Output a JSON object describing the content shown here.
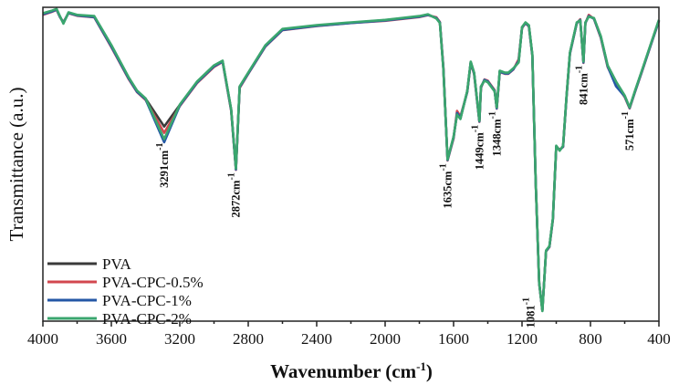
{
  "chart_data": {
    "type": "line",
    "title": "",
    "xlabel": "Wavenumber (cm",
    "xlabel_sup": "-1",
    "xlabel_end": ")",
    "ylabel": "Transmittance (a.u.)",
    "xlim": [
      4000,
      400
    ],
    "ylim": [
      0,
      100
    ],
    "x_ticks": [
      4000,
      3600,
      3200,
      2800,
      2400,
      2000,
      1600,
      1200,
      800,
      400
    ],
    "grid": false,
    "legend_position": "bottom-left",
    "x": [
      4000,
      3950,
      3920,
      3900,
      3880,
      3850,
      3800,
      3700,
      3600,
      3500,
      3450,
      3400,
      3291,
      3200,
      3100,
      3000,
      2950,
      2900,
      2872,
      2850,
      2800,
      2700,
      2600,
      2400,
      2200,
      2000,
      1800,
      1750,
      1700,
      1680,
      1660,
      1635,
      1600,
      1580,
      1560,
      1520,
      1500,
      1480,
      1449,
      1440,
      1420,
      1400,
      1360,
      1348,
      1330,
      1300,
      1280,
      1250,
      1220,
      1200,
      1180,
      1160,
      1140,
      1120,
      1100,
      1081,
      1060,
      1040,
      1020,
      1000,
      980,
      960,
      940,
      920,
      880,
      860,
      841,
      830,
      810,
      780,
      740,
      700,
      650,
      600,
      571,
      540,
      500,
      450,
      400
    ],
    "series": [
      {
        "name": "PVA",
        "color": "#3a3a3a",
        "values": [
          98,
          98.8,
          99.4,
          97,
          95,
          98.3,
          97.5,
          97.1,
          87.8,
          77.6,
          73.3,
          70.9,
          62,
          68.9,
          76.2,
          81.4,
          82.9,
          67.4,
          48.5,
          74.7,
          79.1,
          87.8,
          93,
          94.2,
          95.1,
          95.9,
          97.1,
          97.7,
          96.5,
          95.1,
          80.5,
          51.4,
          58.7,
          66,
          64.5,
          73.3,
          82.6,
          79.1,
          63.7,
          74.7,
          76.7,
          76.2,
          73.3,
          68,
          79.7,
          79.1,
          79.1,
          80.5,
          82.6,
          93.6,
          95.1,
          94.2,
          84.9,
          44.2,
          12.2,
          3.5,
          22.4,
          23.8,
          32.6,
          55.8,
          54.4,
          55.8,
          71.8,
          85.5,
          95.1,
          95.9,
          82.6,
          95.1,
          97.1,
          96.5,
          90.7,
          81.4,
          76.2,
          71.8,
          68,
          73.3,
          79.7,
          87.8,
          95.9
        ]
      },
      {
        "name": "PVA-CPC-0.5%",
        "color": "#d2474f",
        "values": [
          97.6,
          98.5,
          99.2,
          96.8,
          95.3,
          98.1,
          97.3,
          96.8,
          87.3,
          77.2,
          73,
          70.5,
          60,
          68.5,
          75.8,
          81,
          82.6,
          67,
          48.2,
          74.3,
          78.8,
          87.5,
          92.7,
          94,
          95,
          95.7,
          96.9,
          97.5,
          96.8,
          95.3,
          81,
          51.2,
          58.2,
          67,
          65.2,
          73,
          82.3,
          78.7,
          63.5,
          74.3,
          77,
          76.6,
          73.6,
          67.7,
          79.4,
          78.8,
          78.8,
          80.2,
          83.5,
          93.4,
          94.9,
          93.9,
          84.5,
          44,
          12,
          3.3,
          22.2,
          23.6,
          32.3,
          55.5,
          54.7,
          55.5,
          71.5,
          85.2,
          94.9,
          96.2,
          82.3,
          94.9,
          97.6,
          96.3,
          90.3,
          81,
          75.5,
          71.4,
          67.8,
          73,
          79.4,
          87.5,
          95.6
        ]
      },
      {
        "name": "PVA-CPC-1%",
        "color": "#2457a6",
        "values": [
          97.8,
          98.6,
          99.3,
          96.9,
          95.1,
          98.2,
          97.4,
          96.9,
          87.5,
          77.4,
          73.1,
          70.7,
          57,
          68.7,
          76,
          81.2,
          82.7,
          67.2,
          48.3,
          74.5,
          78.9,
          87.6,
          92.8,
          94.1,
          95,
          95.8,
          97,
          97.6,
          96.6,
          95.2,
          80.7,
          51.3,
          58.5,
          66.3,
          64.8,
          73.1,
          82.5,
          78.9,
          63.6,
          74.5,
          76.9,
          76.4,
          73.4,
          67.8,
          79.5,
          78.9,
          78.9,
          80.3,
          82.9,
          93.5,
          95,
          94,
          84.7,
          44.1,
          12.1,
          3.4,
          22.3,
          23.7,
          32.4,
          55.6,
          54.5,
          55.6,
          71.6,
          85.3,
          95,
          96,
          82.4,
          95,
          97.2,
          96.4,
          90.5,
          81.2,
          74.8,
          71.6,
          67.9,
          73.1,
          79.5,
          87.6,
          95.7
        ]
      },
      {
        "name": "PVA-CPC-2%",
        "color": "#3aa66e",
        "values": [
          98.1,
          98.9,
          99.5,
          97.1,
          94.8,
          98.4,
          97.6,
          97.2,
          88,
          77.8,
          73.5,
          71,
          58,
          69,
          76.3,
          81.5,
          83,
          67.5,
          48.6,
          74.8,
          79.2,
          87.9,
          93.1,
          94.3,
          95.2,
          96,
          97.2,
          97.8,
          96.4,
          95,
          80.3,
          51.5,
          58.8,
          65.8,
          64.4,
          73.4,
          82.7,
          79.2,
          63.8,
          74.8,
          76.6,
          76.1,
          73.2,
          68.1,
          79.8,
          79.2,
          79.2,
          80.6,
          82.4,
          93.7,
          95.2,
          94.3,
          85,
          44.3,
          12.3,
          3.2,
          22.5,
          23.9,
          32.7,
          55.9,
          54.3,
          55.9,
          71.9,
          85.6,
          95.2,
          95.8,
          82.7,
          95.2,
          97,
          96.6,
          90.8,
          81.5,
          76.3,
          71.9,
          68.1,
          73.4,
          79.8,
          87.9,
          96
        ]
      }
    ],
    "annotations": [
      {
        "label": "3291cm",
        "sup": "-1",
        "x": 3291,
        "y": 58
      },
      {
        "label": "2872cm",
        "sup": "-1",
        "x": 2872,
        "y": 48.5
      },
      {
        "label": "1635cm",
        "sup": "-1",
        "x": 1635,
        "y": 51.4
      },
      {
        "label": "1449cm",
        "sup": "-1",
        "x": 1449,
        "y": 63.7
      },
      {
        "label": "1348cm",
        "sup": "-1",
        "x": 1348,
        "y": 68
      },
      {
        "label": "1081",
        "sup": "-1",
        "x": 1081,
        "y": 3.5
      },
      {
        "label": "841cm",
        "sup": "-1",
        "x": 841,
        "y": 82.6
      },
      {
        "label": "571cm",
        "sup": "-1",
        "x": 571,
        "y": 68
      }
    ]
  }
}
